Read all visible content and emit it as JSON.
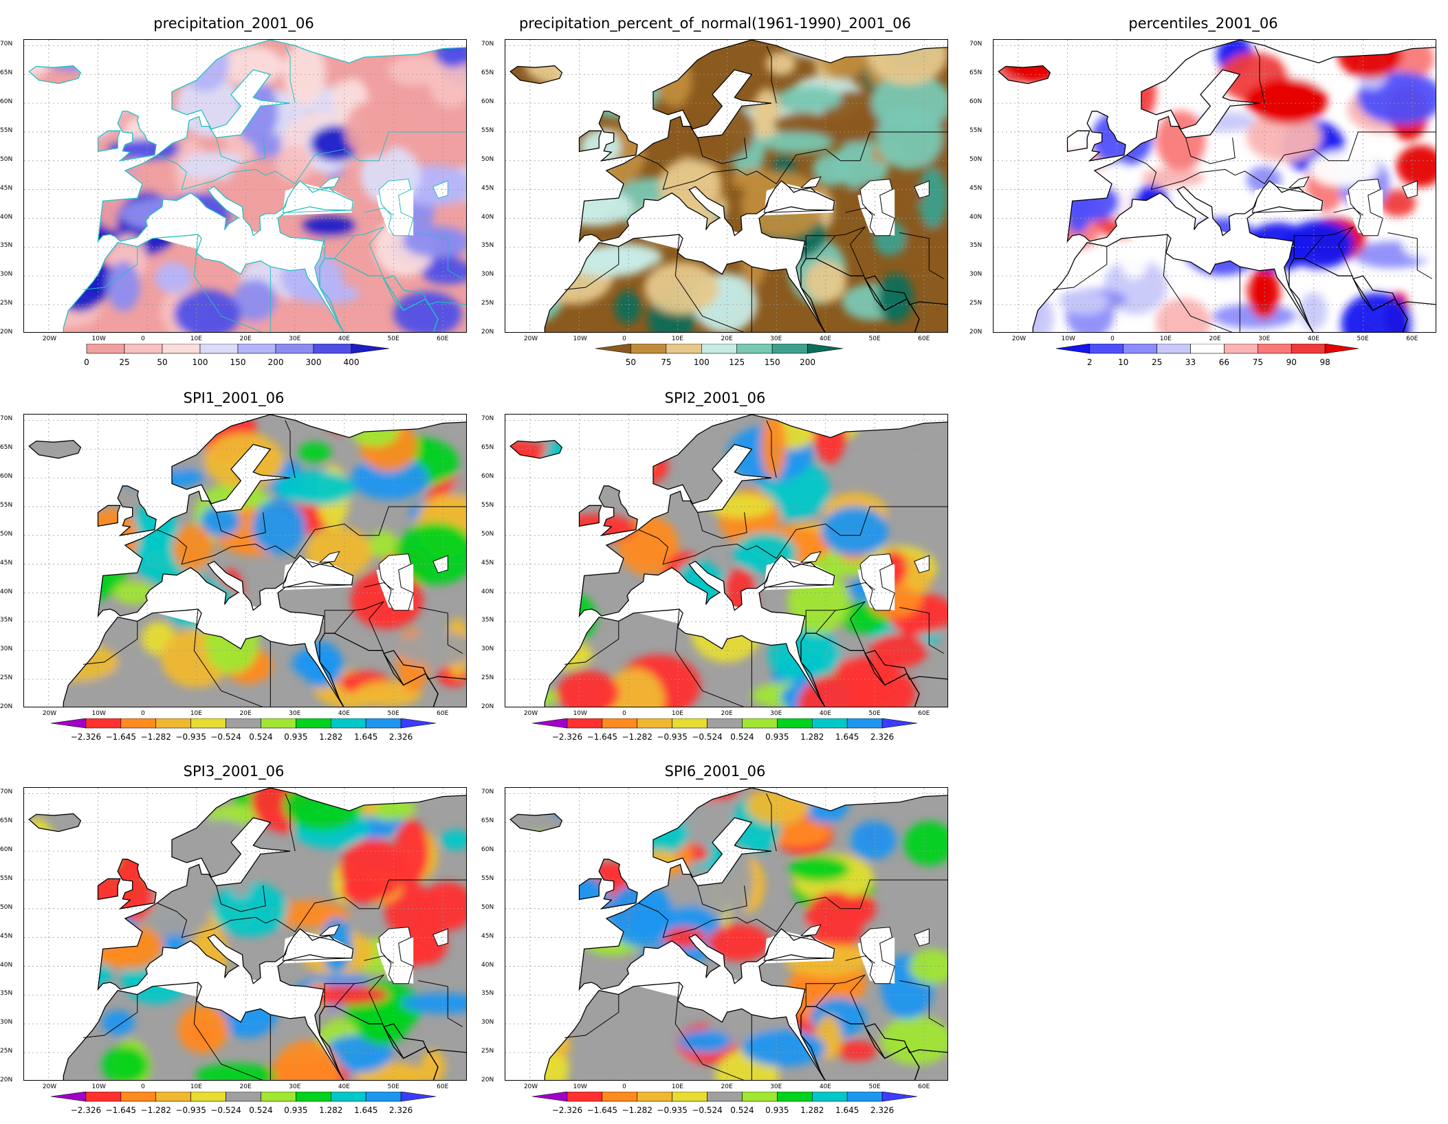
{
  "colors": {
    "spi": [
      "#a000c8",
      "#ff3030",
      "#ff8a20",
      "#f0b830",
      "#e6dc32",
      "#a0a0a0",
      "#a0e632",
      "#00d21e",
      "#00c8c8",
      "#1e96f0",
      "#3c3cff"
    ],
    "prec": [
      "#f0a0a0",
      "#f8c0c0",
      "#fadcdc",
      "#dcdcf8",
      "#b4b4fa",
      "#8c8cf0",
      "#5050e6",
      "#1e1ec8"
    ],
    "pct": [
      "#8b5a1e",
      "#c08c3c",
      "#e6c88c",
      "#c8ebe6",
      "#78c8b4",
      "#3ca08c",
      "#0a6e5a"
    ],
    "perc": [
      "#1414f0",
      "#5050fa",
      "#8c8cfa",
      "#c8c8fa",
      "#ffffff",
      "#fab4b4",
      "#fa7878",
      "#f03c3c",
      "#e60000"
    ],
    "coast_cyan": "#20c0c0",
    "coast_black": "#000000",
    "map_bg": "#ffffff"
  },
  "axes": {
    "lat_labels": [
      "70N",
      "65N",
      "60N",
      "55N",
      "50N",
      "45N",
      "40N",
      "35N",
      "30N",
      "25N",
      "20N"
    ],
    "lon_labels": [
      "20W",
      "10W",
      "0",
      "10E",
      "20E",
      "30E",
      "40E",
      "50E",
      "60E"
    ]
  },
  "panels": [
    {
      "id": "p1",
      "title": "precipitation_2001_06",
      "palette": "prec",
      "coast": "coast_cyan",
      "ticks": [
        "0",
        "25",
        "50",
        "100",
        "150",
        "200",
        "300",
        "400"
      ],
      "seed": 1
    },
    {
      "id": "p2",
      "title": "precipitation_percent_of_normal(1961-1990)_2001_06",
      "palette": "pct",
      "coast": "coast_black",
      "ticks": [
        "50",
        "75",
        "100",
        "125",
        "150",
        "200"
      ],
      "seed": 2
    },
    {
      "id": "p3",
      "title": "percentiles_2001_06",
      "palette": "perc",
      "coast": "coast_black",
      "ticks": [
        "2",
        "10",
        "25",
        "33",
        "66",
        "75",
        "90",
        "98"
      ],
      "seed": 3
    },
    {
      "id": "p4",
      "title": "SPI1_2001_06",
      "palette": "spi",
      "coast": "coast_black",
      "ticks": [
        "-2.326",
        "-1.645",
        "-1.282",
        "-0.935",
        "-0.524",
        "0.524",
        "0.935",
        "1.282",
        "1.645",
        "2.326"
      ],
      "seed": 4
    },
    {
      "id": "p5",
      "title": "SPI2_2001_06",
      "palette": "spi",
      "coast": "coast_black",
      "ticks": [
        "-2.326",
        "-1.645",
        "-1.282",
        "-0.935",
        "-0.524",
        "0.524",
        "0.935",
        "1.282",
        "1.645",
        "2.326"
      ],
      "seed": 5
    },
    {
      "id": "p6",
      "title": "SPI3_2001_06",
      "palette": "spi",
      "coast": "coast_black",
      "ticks": [
        "-2.326",
        "-1.645",
        "-1.282",
        "-0.935",
        "-0.524",
        "0.524",
        "0.935",
        "1.282",
        "1.645",
        "2.326"
      ],
      "seed": 6
    },
    {
      "id": "p7",
      "title": "SPI6_2001_06",
      "palette": "spi",
      "coast": "coast_black",
      "ticks": [
        "-2.326",
        "-1.645",
        "-1.282",
        "-0.935",
        "-0.524",
        "0.524",
        "0.935",
        "1.282",
        "1.645",
        "2.326"
      ],
      "seed": 7
    }
  ]
}
